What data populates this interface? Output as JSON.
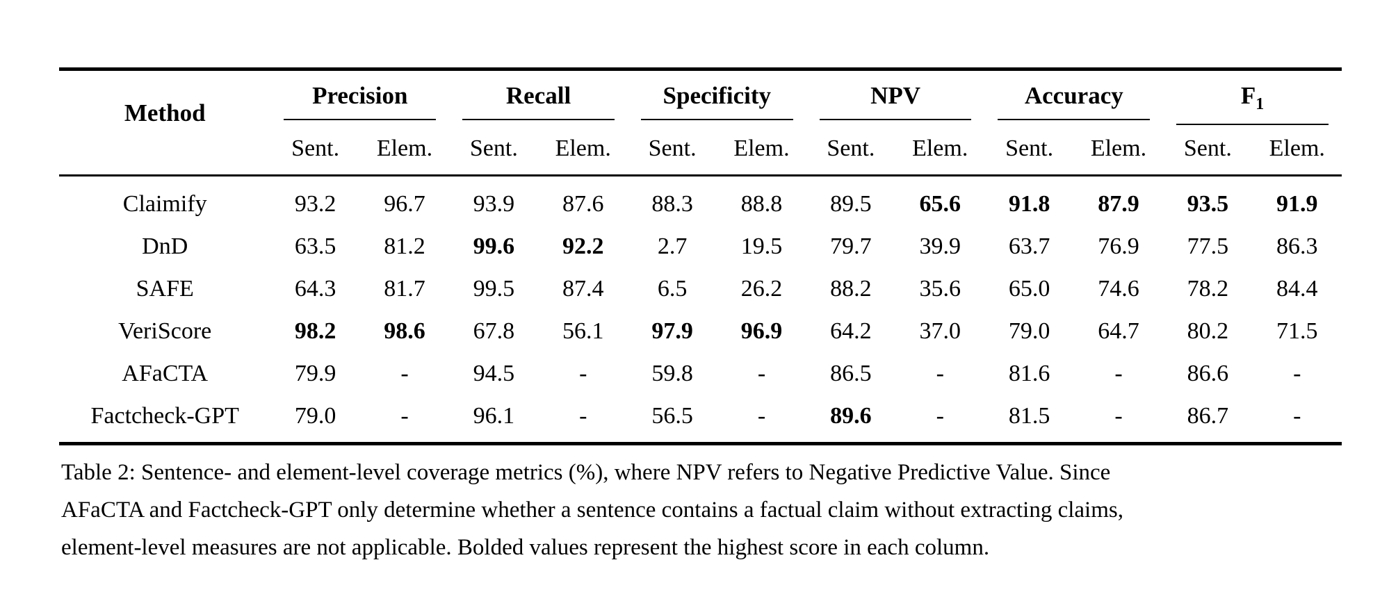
{
  "table": {
    "method_header": "Method",
    "groups": [
      {
        "label": "Precision"
      },
      {
        "label": "Recall"
      },
      {
        "label": "Specificity"
      },
      {
        "label": "NPV"
      },
      {
        "label": "Accuracy"
      },
      {
        "label": "F",
        "sub": "1"
      }
    ],
    "sub_labels": [
      "Sent.",
      "Elem."
    ],
    "rows": [
      {
        "method": "Claimify",
        "values": [
          "93.2",
          "96.7",
          "93.9",
          "87.6",
          "88.3",
          "88.8",
          "89.5",
          "65.6",
          "91.8",
          "87.9",
          "93.5",
          "91.9"
        ],
        "bold": [
          7,
          8,
          9,
          10,
          11
        ]
      },
      {
        "method": "DnD",
        "values": [
          "63.5",
          "81.2",
          "99.6",
          "92.2",
          "2.7",
          "19.5",
          "79.7",
          "39.9",
          "63.7",
          "76.9",
          "77.5",
          "86.3"
        ],
        "bold": [
          2,
          3
        ]
      },
      {
        "method": "SAFE",
        "values": [
          "64.3",
          "81.7",
          "99.5",
          "87.4",
          "6.5",
          "26.2",
          "88.2",
          "35.6",
          "65.0",
          "74.6",
          "78.2",
          "84.4"
        ],
        "bold": []
      },
      {
        "method": "VeriScore",
        "values": [
          "98.2",
          "98.6",
          "67.8",
          "56.1",
          "97.9",
          "96.9",
          "64.2",
          "37.0",
          "79.0",
          "64.7",
          "80.2",
          "71.5"
        ],
        "bold": [
          0,
          1,
          4,
          5
        ]
      },
      {
        "method": "AFaCTA",
        "values": [
          "79.9",
          "-",
          "94.5",
          "-",
          "59.8",
          "-",
          "86.5",
          "-",
          "81.6",
          "-",
          "86.6",
          "-"
        ],
        "bold": []
      },
      {
        "method": "Factcheck-GPT",
        "values": [
          "79.0",
          "-",
          "96.1",
          "-",
          "56.5",
          "-",
          "89.6",
          "-",
          "81.5",
          "-",
          "86.7",
          "-"
        ],
        "bold": [
          6
        ]
      }
    ]
  },
  "caption": {
    "lines": [
      "Table 2: Sentence- and element-level coverage metrics (%), where NPV refers to Negative Predictive Value. Since",
      "AFaCTA and Factcheck-GPT only determine whether a sentence contains a factual claim without extracting claims,",
      "element-level measures are not applicable. Bolded values represent the highest score in each column."
    ]
  },
  "colors": {
    "text": "#000000",
    "background": "#ffffff",
    "rule": "#000000"
  }
}
